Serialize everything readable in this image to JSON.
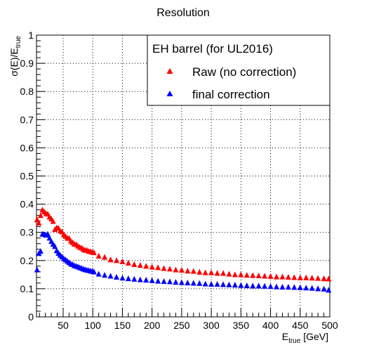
{
  "chart_data": {
    "type": "scatter",
    "title": "Resolution",
    "xlabel": {
      "main": "E",
      "sub": "true",
      "rest": " [GeV]"
    },
    "ylabel": {
      "main": "σ(E)/E",
      "sub": "true"
    },
    "xlim": [
      5,
      500
    ],
    "ylim": [
      0,
      1
    ],
    "x_ticks": [
      50,
      100,
      150,
      200,
      250,
      300,
      350,
      400,
      450,
      500
    ],
    "y_ticks": [
      0,
      0.1,
      0.2,
      0.3,
      0.4,
      0.5,
      0.6,
      0.7,
      0.8,
      0.9,
      1
    ],
    "y_tick_labels": [
      "0",
      "0.1",
      "0.2",
      "0.3",
      "0.4",
      "0.5",
      "0.6",
      "0.7",
      "0.8",
      "0.9",
      "1"
    ],
    "grid": true,
    "legend": {
      "header": "EH barrel (for UL2016)",
      "position": "top-right"
    },
    "series": [
      {
        "name": "Raw (no correction)",
        "color": "#ff0000",
        "marker": "triangle-up",
        "x": [
          6,
          9,
          12,
          15,
          18,
          21,
          24,
          27,
          30,
          33,
          36,
          39,
          42,
          45,
          48,
          51,
          54,
          57,
          60,
          63,
          66,
          69,
          72,
          75,
          78,
          81,
          84,
          87,
          90,
          93,
          96,
          99,
          102,
          110,
          120,
          130,
          140,
          150,
          160,
          170,
          180,
          190,
          200,
          210,
          220,
          230,
          240,
          250,
          260,
          270,
          280,
          290,
          300,
          310,
          320,
          330,
          340,
          350,
          360,
          370,
          380,
          390,
          400,
          410,
          420,
          430,
          440,
          450,
          460,
          470,
          480,
          490,
          498
        ],
        "y": [
          0.345,
          0.333,
          0.36,
          0.38,
          0.373,
          0.367,
          0.365,
          0.355,
          0.348,
          0.339,
          0.31,
          0.316,
          0.315,
          0.305,
          0.302,
          0.292,
          0.286,
          0.28,
          0.279,
          0.269,
          0.264,
          0.258,
          0.257,
          0.252,
          0.247,
          0.245,
          0.24,
          0.237,
          0.237,
          0.233,
          0.232,
          0.23,
          0.228,
          0.216,
          0.212,
          0.203,
          0.2,
          0.196,
          0.191,
          0.186,
          0.183,
          0.18,
          0.177,
          0.175,
          0.172,
          0.17,
          0.167,
          0.166,
          0.163,
          0.162,
          0.159,
          0.157,
          0.157,
          0.155,
          0.155,
          0.152,
          0.15,
          0.15,
          0.148,
          0.147,
          0.146,
          0.145,
          0.144,
          0.142,
          0.142,
          0.141,
          0.14,
          0.139,
          0.139,
          0.138,
          0.137,
          0.136,
          0.135
        ]
      },
      {
        "name": "final correction",
        "color": "#0000ff",
        "marker": "triangle-up",
        "x": [
          6,
          9,
          12,
          15,
          18,
          21,
          24,
          27,
          30,
          33,
          36,
          39,
          42,
          45,
          48,
          51,
          54,
          57,
          60,
          63,
          66,
          69,
          72,
          75,
          78,
          81,
          84,
          87,
          90,
          93,
          96,
          99,
          102,
          110,
          120,
          130,
          140,
          150,
          160,
          170,
          180,
          190,
          200,
          210,
          220,
          230,
          240,
          250,
          260,
          270,
          280,
          290,
          300,
          310,
          320,
          330,
          340,
          350,
          360,
          370,
          380,
          390,
          400,
          410,
          420,
          430,
          440,
          450,
          460,
          470,
          480,
          490,
          498
        ],
        "y": [
          0.167,
          0.225,
          0.233,
          0.294,
          0.293,
          0.29,
          0.294,
          0.28,
          0.268,
          0.258,
          0.25,
          0.235,
          0.226,
          0.219,
          0.213,
          0.207,
          0.203,
          0.198,
          0.193,
          0.188,
          0.186,
          0.182,
          0.18,
          0.178,
          0.175,
          0.173,
          0.17,
          0.168,
          0.166,
          0.165,
          0.163,
          0.162,
          0.16,
          0.152,
          0.148,
          0.145,
          0.141,
          0.138,
          0.136,
          0.134,
          0.132,
          0.131,
          0.129,
          0.127,
          0.126,
          0.125,
          0.123,
          0.122,
          0.121,
          0.12,
          0.119,
          0.117,
          0.116,
          0.116,
          0.115,
          0.114,
          0.113,
          0.112,
          0.111,
          0.11,
          0.11,
          0.109,
          0.108,
          0.107,
          0.106,
          0.106,
          0.105,
          0.104,
          0.103,
          0.102,
          0.1,
          0.099,
          0.095
        ]
      }
    ]
  }
}
